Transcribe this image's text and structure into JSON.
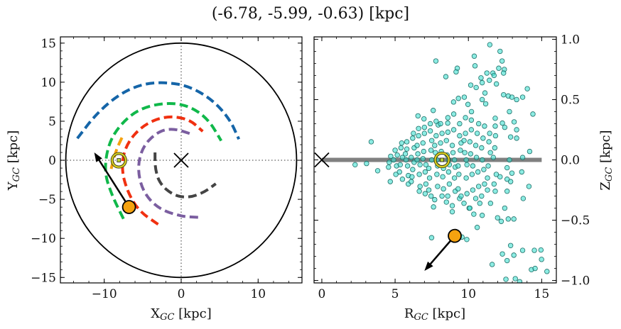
{
  "title": "(-6.78, -5.99, -0.63) [kpc]",
  "colors": {
    "orange_object": "#f5a20f",
    "scatter_fill": "#40e0d0",
    "scatter_edge": "#1f6f68",
    "sun_ring": "#d8d020",
    "disk_line": "#808080"
  },
  "chart_data": [
    {
      "type": "line",
      "panel": "left",
      "xlabel": {
        "base": "X",
        "sub": "GC",
        "unit": " [kpc]"
      },
      "ylabel": {
        "base": "Y",
        "sub": "GC",
        "unit": " [kpc]"
      },
      "xlim": [
        -15.7,
        15.7
      ],
      "ylim": [
        -15.7,
        15.8
      ],
      "xticks": [
        -10,
        0,
        10
      ],
      "yticks": [
        -15,
        -10,
        -5,
        0,
        5,
        10,
        15
      ],
      "xtick_labels": [
        "−10",
        "0",
        "10"
      ],
      "ytick_labels": [
        "−15",
        "−10",
        "−5",
        "0",
        "5",
        "10",
        "15"
      ],
      "boundary_circle_radius": 15,
      "reference_lines": {
        "x": 0,
        "y": 0,
        "style": "dotted"
      },
      "galactic_center": [
        0,
        0
      ],
      "sun": [
        -8.1,
        0
      ],
      "object": [
        -6.78,
        -5.99
      ],
      "velocity_arrow_tip": [
        -11.3,
        1.0
      ],
      "arms": [
        {
          "color": "#1565a8",
          "points": [
            [
              -13.5,
              2.8
            ],
            [
              -11,
              6
            ],
            [
              -8,
              8.5
            ],
            [
              -5,
              9.8
            ],
            [
              -2,
              10
            ],
            [
              1,
              9.5
            ],
            [
              4,
              7.8
            ],
            [
              6.3,
              5.3
            ],
            [
              7.5,
              2.7
            ]
          ]
        },
        {
          "color": "#10b84a",
          "points": [
            [
              -7.5,
              -7.5
            ],
            [
              -9,
              -4.5
            ],
            [
              -10,
              -1.5
            ],
            [
              -9.5,
              2
            ],
            [
              -8,
              4.5
            ],
            [
              -5.5,
              6.6
            ],
            [
              -2,
              7.4
            ],
            [
              1,
              7
            ],
            [
              3.5,
              5.3
            ],
            [
              5.2,
              2.5
            ]
          ]
        },
        {
          "color": "#f5a20f",
          "points": [
            [
              -7.7,
              2.9
            ],
            [
              -8.5,
              1.2
            ],
            [
              -9.1,
              -1.1
            ]
          ]
        },
        {
          "color": "#f03010",
          "points": [
            [
              -3,
              -8.2
            ],
            [
              -5.5,
              -6.5
            ],
            [
              -7,
              -4
            ],
            [
              -7.8,
              -1
            ],
            [
              -7.2,
              2
            ],
            [
              -5,
              4.5
            ],
            [
              -2,
              5.7
            ],
            [
              1,
              5.3
            ],
            [
              2.8,
              3.7
            ]
          ]
        },
        {
          "color": "#7b5ea0",
          "points": [
            [
              2.2,
              -7.3
            ],
            [
              0,
              -7.2
            ],
            [
              -3,
              -6.2
            ],
            [
              -5,
              -4
            ],
            [
              -5.7,
              -1
            ],
            [
              -5,
              1.8
            ],
            [
              -3,
              3.7
            ],
            [
              -1,
              4.1
            ],
            [
              1.5,
              3.3
            ]
          ]
        },
        {
          "color": "#444444",
          "points": [
            [
              -3.4,
              1
            ],
            [
              -3.4,
              -1
            ],
            [
              -2.8,
              -3
            ],
            [
              -1,
              -4.5
            ],
            [
              1,
              -4.8
            ],
            [
              3,
              -4.1
            ],
            [
              4.5,
              -3
            ]
          ]
        }
      ]
    },
    {
      "type": "scatter",
      "panel": "right",
      "xlabel": {
        "base": "R",
        "sub": "GC",
        "unit": " [kpc]"
      },
      "ylabel": {
        "base": "Z",
        "sub": "GC",
        "unit": " [kpc]"
      },
      "xlim": [
        -0.53,
        16.0
      ],
      "ylim": [
        -1.02,
        1.02
      ],
      "xticks": [
        0,
        5,
        10,
        15
      ],
      "yticks": [
        -1.0,
        -0.5,
        0.0,
        0.5,
        1.0
      ],
      "xtick_labels": [
        "0",
        "5",
        "10",
        "15"
      ],
      "ytick_labels": [
        "−1.0",
        "−0.5",
        "0.0",
        "0.5",
        "1.0"
      ],
      "disk_line": {
        "z": 0,
        "r_range": [
          0,
          15
        ]
      },
      "galactic_center": [
        0,
        0
      ],
      "sun": [
        8.2,
        0
      ],
      "object": [
        9.07,
        -0.63
      ],
      "velocity_arrow_tip": [
        7.0,
        -0.92
      ],
      "points": [
        [
          11.46,
          0.955
        ],
        [
          12.16,
          0.9
        ],
        [
          10.4,
          0.86
        ],
        [
          7.78,
          0.82
        ],
        [
          12.3,
          0.82
        ],
        [
          10.45,
          0.78
        ],
        [
          9.24,
          0.76
        ],
        [
          9.16,
          0.73
        ],
        [
          12.07,
          0.76
        ],
        [
          12.45,
          0.75
        ],
        [
          12.4,
          0.72
        ],
        [
          8.46,
          0.69
        ],
        [
          11.26,
          0.72
        ],
        [
          11.67,
          0.72
        ],
        [
          11.75,
          0.7
        ],
        [
          10.86,
          0.68
        ],
        [
          10.94,
          0.64
        ],
        [
          11.43,
          0.66
        ],
        [
          11.91,
          0.63
        ],
        [
          10.16,
          0.62
        ],
        [
          10.53,
          0.6
        ],
        [
          14.02,
          0.59
        ],
        [
          11.13,
          0.555
        ],
        [
          12.4,
          0.54
        ],
        [
          12.72,
          0.53
        ],
        [
          12.97,
          0.52
        ],
        [
          13.29,
          0.5
        ],
        [
          13.7,
          0.52
        ],
        [
          14.4,
          0.38
        ],
        [
          6.56,
          0.365
        ],
        [
          6.97,
          0.34
        ],
        [
          7.6,
          0.41
        ],
        [
          3.37,
          0.15
        ],
        [
          2.27,
          -0.04
        ],
        [
          3.05,
          -0.03
        ],
        [
          3.81,
          -0.09
        ],
        [
          4.67,
          -0.18
        ],
        [
          14.18,
          0.07
        ],
        [
          13.7,
          0.02
        ],
        [
          13.64,
          -0.1
        ],
        [
          14.13,
          -0.22
        ],
        [
          13.74,
          -0.32
        ],
        [
          7.62,
          -0.39
        ],
        [
          8.9,
          -0.43
        ],
        [
          10.37,
          -0.45
        ],
        [
          10.94,
          -0.46
        ],
        [
          10.6,
          -0.56
        ],
        [
          11.99,
          -0.48
        ],
        [
          12.24,
          -0.51
        ],
        [
          12.72,
          -0.49
        ],
        [
          13.1,
          -0.49
        ],
        [
          7.49,
          -0.645
        ],
        [
          9.89,
          -0.66
        ],
        [
          9.56,
          -0.64
        ],
        [
          12.88,
          -0.71
        ],
        [
          12.32,
          -0.78
        ],
        [
          13.1,
          -0.79
        ],
        [
          13.7,
          -0.75
        ],
        [
          14.5,
          -0.75
        ],
        [
          14.95,
          -0.747
        ],
        [
          14.99,
          -0.825
        ],
        [
          12.64,
          -0.835
        ],
        [
          11.62,
          -0.867
        ],
        [
          14.3,
          -0.91
        ],
        [
          14.55,
          -0.9
        ],
        [
          15.36,
          -0.925
        ],
        [
          12.56,
          -0.99
        ],
        [
          13.2,
          -0.985
        ],
        [
          13.5,
          -1.01
        ],
        [
          7.94,
          0.29
        ],
        [
          8.59,
          0.305
        ],
        [
          8.99,
          0.48
        ],
        [
          9.32,
          0.51
        ],
        [
          9.72,
          0.52
        ],
        [
          9.97,
          0.46
        ],
        [
          10.21,
          0.4
        ],
        [
          10.94,
          0.5
        ],
        [
          11.18,
          0.465
        ],
        [
          8.59,
          -0.3
        ],
        [
          9.4,
          -0.32
        ],
        [
          10.05,
          -0.4
        ],
        [
          10.78,
          -0.36
        ],
        [
          11.51,
          -0.36
        ],
        [
          12.48,
          -0.4
        ],
        [
          12.64,
          -0.26
        ],
        [
          12.88,
          -0.18
        ],
        [
          11.83,
          -0.26
        ],
        [
          12.8,
          0.4
        ],
        [
          13.12,
          0.315
        ],
        [
          13.29,
          0.25
        ],
        [
          12.88,
          0.19
        ],
        [
          13.29,
          0.18
        ],
        [
          12.48,
          0.27
        ],
        [
          11.83,
          0.345
        ],
        [
          12.32,
          0.305
        ],
        [
          11.83,
          0.28
        ],
        [
          12.8,
          0.0
        ],
        [
          12.64,
          -0.065
        ],
        [
          12.97,
          -0.11
        ],
        [
          12.64,
          -0.16
        ],
        [
          12.16,
          -0.14
        ],
        [
          4.6,
          -0.02
        ],
        [
          4.7,
          0.03
        ],
        [
          4.55,
          -0.06
        ],
        [
          5.0,
          0.08
        ],
        [
          5.1,
          -0.05
        ],
        [
          4.9,
          0.0
        ],
        [
          5.05,
          -0.12
        ],
        [
          5.15,
          0.04
        ],
        [
          5.4,
          0.1
        ],
        [
          5.3,
          -0.1
        ],
        [
          5.5,
          0.02
        ],
        [
          5.35,
          -0.04
        ],
        [
          5.45,
          0.14
        ],
        [
          5.5,
          -0.16
        ],
        [
          5.8,
          0.15
        ],
        [
          5.9,
          -0.13
        ],
        [
          5.7,
          0.05
        ],
        [
          5.85,
          -0.05
        ],
        [
          5.75,
          0.0
        ],
        [
          5.9,
          -0.2
        ],
        [
          5.8,
          0.09
        ],
        [
          6.2,
          0.18
        ],
        [
          6.1,
          -0.18
        ],
        [
          6.3,
          0.1
        ],
        [
          6.2,
          -0.08
        ],
        [
          6.1,
          0.02
        ],
        [
          6.3,
          -0.02
        ],
        [
          6.25,
          0.22
        ],
        [
          6.15,
          -0.14
        ],
        [
          6.6,
          0.2
        ],
        [
          6.7,
          -0.22
        ],
        [
          6.5,
          0.12
        ],
        [
          6.65,
          -0.12
        ],
        [
          6.55,
          0.05
        ],
        [
          6.7,
          -0.04
        ],
        [
          6.6,
          0.26
        ],
        [
          6.5,
          0.0
        ],
        [
          6.65,
          -0.26
        ],
        [
          7.0,
          0.22
        ],
        [
          7.1,
          -0.2
        ],
        [
          6.9,
          0.14
        ],
        [
          7.05,
          -0.1
        ],
        [
          6.95,
          0.07
        ],
        [
          7.1,
          -0.04
        ],
        [
          7.0,
          0.27
        ],
        [
          6.9,
          0.01
        ],
        [
          7.05,
          -0.28
        ],
        [
          7.4,
          0.24
        ],
        [
          7.3,
          -0.25
        ],
        [
          7.5,
          0.16
        ],
        [
          7.35,
          -0.15
        ],
        [
          7.45,
          0.08
        ],
        [
          7.3,
          -0.07
        ],
        [
          7.4,
          0.3
        ],
        [
          7.5,
          0.0
        ],
        [
          7.45,
          -0.3
        ],
        [
          7.8,
          0.2
        ],
        [
          7.9,
          -0.22
        ],
        [
          7.7,
          0.12
        ],
        [
          7.85,
          -0.12
        ],
        [
          7.75,
          0.06
        ],
        [
          7.9,
          -0.05
        ],
        [
          7.8,
          0.32
        ],
        [
          7.7,
          -0.33
        ],
        [
          7.85,
          0.0
        ],
        [
          8.2,
          0.22
        ],
        [
          8.3,
          -0.24
        ],
        [
          8.1,
          0.14
        ],
        [
          8.25,
          -0.14
        ],
        [
          8.15,
          0.07
        ],
        [
          8.3,
          -0.07
        ],
        [
          8.2,
          -0.3
        ],
        [
          8.1,
          0.3
        ],
        [
          8.6,
          0.23
        ],
        [
          8.7,
          -0.2
        ],
        [
          8.5,
          0.16
        ],
        [
          8.65,
          -0.1
        ],
        [
          8.55,
          0.04
        ],
        [
          8.7,
          -0.04
        ],
        [
          8.6,
          0.35
        ],
        [
          8.5,
          -0.35
        ],
        [
          8.65,
          0.0
        ],
        [
          9.0,
          0.25
        ],
        [
          9.1,
          -0.26
        ],
        [
          8.9,
          0.12
        ],
        [
          9.05,
          -0.15
        ],
        [
          8.95,
          0.06
        ],
        [
          9.1,
          -0.06
        ],
        [
          9.0,
          0.38
        ],
        [
          8.9,
          -0.38
        ],
        [
          9.05,
          0.0
        ],
        [
          9.4,
          0.2
        ],
        [
          9.3,
          -0.24
        ],
        [
          9.5,
          0.14
        ],
        [
          9.35,
          -0.12
        ],
        [
          9.45,
          0.08
        ],
        [
          9.3,
          -0.05
        ],
        [
          9.4,
          0.3
        ],
        [
          9.5,
          -0.3
        ],
        [
          9.8,
          0.22
        ],
        [
          9.9,
          -0.28
        ],
        [
          9.7,
          0.16
        ],
        [
          9.85,
          -0.15
        ],
        [
          9.75,
          0.06
        ],
        [
          9.9,
          -0.04
        ],
        [
          9.8,
          0.35
        ],
        [
          9.7,
          -0.36
        ],
        [
          9.85,
          0.0
        ],
        [
          10.2,
          0.25
        ],
        [
          10.3,
          -0.25
        ],
        [
          10.1,
          0.15
        ],
        [
          10.25,
          -0.12
        ],
        [
          10.15,
          0.05
        ],
        [
          10.3,
          -0.05
        ],
        [
          10.2,
          0.33
        ],
        [
          10.1,
          -0.4
        ],
        [
          10.6,
          0.22
        ],
        [
          10.7,
          -0.22
        ],
        [
          10.5,
          0.12
        ],
        [
          10.65,
          -0.1
        ],
        [
          10.55,
          0.02
        ],
        [
          10.7,
          0.3
        ],
        [
          10.5,
          -0.32
        ],
        [
          11.0,
          0.18
        ],
        [
          11.1,
          -0.2
        ],
        [
          10.9,
          0.1
        ],
        [
          11.05,
          -0.08
        ],
        [
          10.95,
          0.0
        ],
        [
          11.1,
          0.28
        ],
        [
          10.9,
          -0.3
        ],
        [
          11.4,
          0.15
        ],
        [
          11.3,
          -0.15
        ],
        [
          11.5,
          0.06
        ],
        [
          11.35,
          -0.05
        ],
        [
          11.45,
          0.22
        ],
        [
          11.3,
          -0.25
        ],
        [
          11.8,
          0.1
        ],
        [
          11.9,
          -0.12
        ],
        [
          11.7,
          0.02
        ],
        [
          11.85,
          0.2
        ],
        [
          11.75,
          -0.2
        ]
      ]
    }
  ]
}
